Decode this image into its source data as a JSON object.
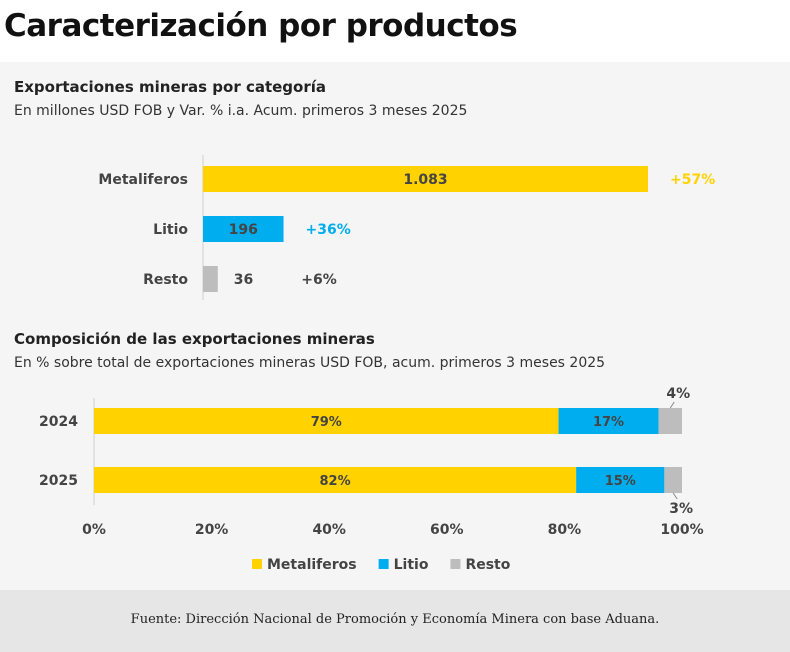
{
  "page": {
    "title": "Caracterización por productos",
    "source": "Fuente: Dirección Nacional de Promoción y Economía Minera con base Aduana."
  },
  "colors": {
    "metaliferos": "#FFD200",
    "litio": "#00AEEF",
    "resto": "#BDBDBD",
    "panel_bg": "#f5f5f5"
  },
  "chart_data": [
    {
      "type": "bar",
      "orientation": "horizontal",
      "title": "Exportaciones mineras por categoría",
      "subtitle": "En millones USD FOB y Var. % i.a. Acum. primeros 3 meses 2025",
      "categories": [
        "Metaliferos",
        "Litio",
        "Resto"
      ],
      "values": [
        1083,
        196,
        36
      ],
      "value_labels": [
        "1.083",
        "196",
        "36"
      ],
      "variation_labels": [
        "+57%",
        "+36%",
        "+6%"
      ],
      "bar_colors": [
        "#FFD200",
        "#00AEEF",
        "#BDBDBD"
      ],
      "variation_colors": [
        "#FFD200",
        "#00AEEF",
        "#444444"
      ],
      "xlim": [
        0,
        1083
      ],
      "grid": false
    },
    {
      "type": "bar",
      "orientation": "horizontal",
      "stacked": true,
      "title": "Composición de las exportaciones mineras",
      "subtitle": "En % sobre total de exportaciones mineras USD FOB, acum. primeros 3 meses 2025",
      "categories": [
        "2024",
        "2025"
      ],
      "series": [
        {
          "name": "Metaliferos",
          "values": [
            79,
            82
          ],
          "labels": [
            "79%",
            "82%"
          ],
          "color": "#FFD200"
        },
        {
          "name": "Litio",
          "values": [
            17,
            15
          ],
          "labels": [
            "17%",
            "15%"
          ],
          "color": "#00AEEF"
        },
        {
          "name": "Resto",
          "values": [
            4,
            3
          ],
          "labels": [
            "4%",
            "3%"
          ],
          "color": "#BDBDBD"
        }
      ],
      "x_ticks": [
        "0%",
        "20%",
        "40%",
        "60%",
        "80%",
        "100%"
      ],
      "x_tick_values": [
        0,
        20,
        40,
        60,
        80,
        100
      ],
      "xlim": [
        0,
        100
      ],
      "legend_position": "bottom",
      "grid": false
    }
  ]
}
